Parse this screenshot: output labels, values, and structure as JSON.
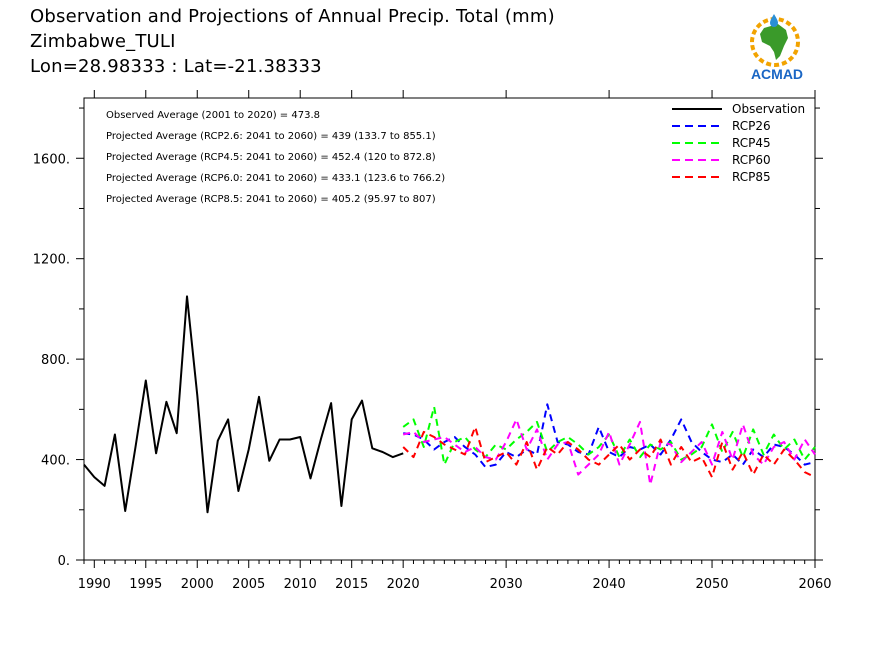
{
  "header": {
    "title": "Observation and Projections of Annual Precip. Total (mm)",
    "station": "Zimbabwe_TULI",
    "coords": "Lon=28.98333 : Lat=-21.38333"
  },
  "logo": {
    "text": "ACMAD",
    "icon": "africa-map-logo-icon"
  },
  "colors": {
    "observation": "#000000",
    "rcp26": "#0000ff",
    "rcp45": "#00ff00",
    "rcp60": "#ff00ff",
    "rcp85": "#ff0000"
  },
  "chart_data": {
    "type": "line",
    "ylim": [
      0,
      1600
    ],
    "xlim": [
      1989,
      2060
    ],
    "y_ticks": [
      0,
      400,
      800,
      1200,
      1600
    ],
    "y_tick_labels": [
      "0.",
      "400.",
      "800.",
      "1200.",
      "1600."
    ],
    "x_ticks": [
      1990,
      1995,
      2000,
      2005,
      2010,
      2015,
      2020,
      2030,
      2040,
      2050,
      2060
    ],
    "x_tick_labels": [
      "1990",
      "1995",
      "2000",
      "2005",
      "2010",
      "2015",
      "2020",
      "2030",
      "2040",
      "2050",
      "2060"
    ],
    "grid": false,
    "legend_position": "top-right",
    "annotations": [
      "Observed Average (2001 to 2020) = 473.8",
      "Projected Average (RCP2.6: 2041 to 2060) = 439 (133.7 to 855.1)",
      "Projected Average (RCP4.5: 2041 to 2060) = 452.4 (120 to 872.8)",
      "Projected Average (RCP6.0: 2041 to 2060) = 433.1 (123.6 to 766.2)",
      "Projected Average (RCP8.5: 2041 to 2060) = 405.2 (95.97 to 807)"
    ],
    "series": [
      {
        "name": "Observation",
        "style": "solid",
        "x": [
          1989,
          1990,
          1991,
          1992,
          1993,
          1994,
          1995,
          1996,
          1997,
          1998,
          1999,
          2000,
          2001,
          2002,
          2003,
          2004,
          2005,
          2006,
          2007,
          2008,
          2009,
          2010,
          2011,
          2012,
          2013,
          2014,
          2015,
          2016,
          2017,
          2018,
          2019,
          2020
        ],
        "y": [
          380,
          330,
          295,
          500,
          195,
          450,
          715,
          425,
          630,
          505,
          1050,
          655,
          190,
          475,
          560,
          275,
          440,
          650,
          395,
          480,
          480,
          490,
          325,
          480,
          625,
          215,
          560,
          635,
          445,
          430,
          410,
          425
        ]
      },
      {
        "name": "RCP26",
        "style": "dashed",
        "x": [
          2020,
          2021,
          2022,
          2023,
          2024,
          2025,
          2026,
          2027,
          2028,
          2029,
          2030,
          2031,
          2032,
          2033,
          2034,
          2035,
          2036,
          2037,
          2038,
          2039,
          2040,
          2041,
          2042,
          2043,
          2044,
          2045,
          2046,
          2047,
          2048,
          2049,
          2050,
          2051,
          2052,
          2053,
          2054,
          2055,
          2056,
          2057,
          2058,
          2059,
          2060
        ],
        "y": [
          505,
          500,
          480,
          440,
          470,
          490,
          450,
          420,
          370,
          380,
          430,
          410,
          440,
          420,
          620,
          470,
          460,
          430,
          420,
          530,
          430,
          410,
          450,
          440,
          460,
          420,
          480,
          560,
          470,
          430,
          400,
          390,
          420,
          380,
          440,
          410,
          460,
          450,
          420,
          380,
          390
        ]
      },
      {
        "name": "RCP45",
        "style": "dashed",
        "x": [
          2020,
          2021,
          2022,
          2023,
          2024,
          2025,
          2026,
          2027,
          2028,
          2029,
          2030,
          2031,
          2032,
          2033,
          2034,
          2035,
          2036,
          2037,
          2038,
          2039,
          2040,
          2041,
          2042,
          2043,
          2044,
          2045,
          2046,
          2047,
          2048,
          2049,
          2050,
          2051,
          2052,
          2053,
          2054,
          2055,
          2056,
          2057,
          2058,
          2059,
          2060
        ],
        "y": [
          530,
          560,
          450,
          610,
          380,
          470,
          490,
          440,
          410,
          460,
          440,
          480,
          510,
          550,
          430,
          470,
          490,
          460,
          420,
          450,
          500,
          410,
          480,
          410,
          460,
          440,
          470,
          400,
          420,
          450,
          540,
          430,
          510,
          410,
          520,
          420,
          500,
          440,
          480,
          400,
          450
        ]
      },
      {
        "name": "RCP60",
        "style": "dashed",
        "x": [
          2020,
          2021,
          2022,
          2023,
          2024,
          2025,
          2026,
          2027,
          2028,
          2029,
          2030,
          2031,
          2032,
          2033,
          2034,
          2035,
          2036,
          2037,
          2038,
          2039,
          2040,
          2041,
          2042,
          2043,
          2044,
          2045,
          2046,
          2047,
          2048,
          2049,
          2050,
          2051,
          2052,
          2053,
          2054,
          2055,
          2056,
          2057,
          2058,
          2059,
          2060
        ],
        "y": [
          500,
          510,
          470,
          480,
          490,
          460,
          430,
          450,
          410,
          400,
          470,
          560,
          440,
          520,
          400,
          460,
          470,
          340,
          380,
          420,
          510,
          380,
          460,
          550,
          300,
          470,
          460,
          390,
          430,
          470,
          380,
          510,
          400,
          540,
          420,
          380,
          450,
          470,
          400,
          480,
          420
        ]
      },
      {
        "name": "RCP85",
        "style": "dashed",
        "x": [
          2020,
          2021,
          2022,
          2023,
          2024,
          2025,
          2026,
          2027,
          2028,
          2029,
          2030,
          2031,
          2032,
          2033,
          2034,
          2035,
          2036,
          2037,
          2038,
          2039,
          2040,
          2041,
          2042,
          2043,
          2044,
          2045,
          2046,
          2047,
          2048,
          2049,
          2050,
          2051,
          2052,
          2053,
          2054,
          2055,
          2056,
          2057,
          2058,
          2059,
          2060
        ],
        "y": [
          450,
          410,
          510,
          490,
          460,
          440,
          420,
          530,
          390,
          410,
          430,
          380,
          470,
          360,
          450,
          420,
          470,
          440,
          400,
          380,
          420,
          460,
          400,
          440,
          410,
          480,
          380,
          450,
          390,
          410,
          330,
          470,
          360,
          430,
          340,
          420,
          380,
          440,
          400,
          350,
          330
        ]
      }
    ]
  }
}
